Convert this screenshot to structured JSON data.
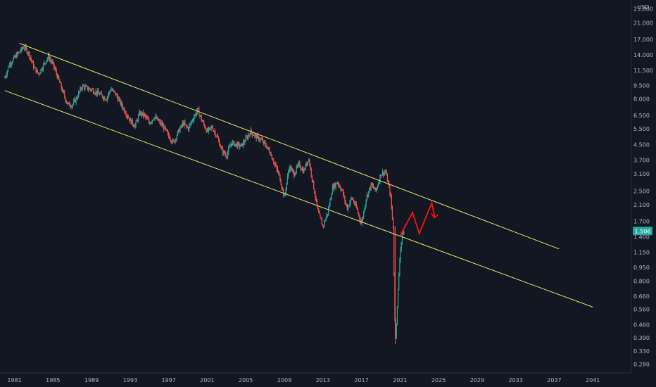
{
  "chart_data": {
    "type": "line",
    "title": "",
    "xlabel": "",
    "ylabel": "USD",
    "y_scale": "log",
    "ylim": [
      0.25,
      28.0
    ],
    "xlim": [
      1979.5,
      2045.0
    ],
    "grid": false,
    "x_ticks": [
      1981,
      1985,
      1989,
      1993,
      1997,
      2001,
      2005,
      2009,
      2013,
      2017,
      2021,
      2025,
      2029,
      2033,
      2037,
      2041
    ],
    "y_ticks": [
      "25.000",
      "21.000",
      "17.000",
      "14.000",
      "11.500",
      "9.500",
      "8.000",
      "6.500",
      "5.500",
      "4.500",
      "3.700",
      "3.100",
      "2.500",
      "2.100",
      "1.700",
      "1.400",
      "1.150",
      "0.950",
      "0.800",
      "0.660",
      "0.560",
      "0.460",
      "0.390",
      "0.330",
      "0.280"
    ],
    "last_price": {
      "label": "1.506",
      "value": 1.506,
      "color": "#26a69a"
    },
    "series": [
      {
        "role": "price",
        "color_up": "#26a69a",
        "color_down": "#ef5350",
        "points": [
          [
            1980.0,
            10.5
          ],
          [
            1980.5,
            12.5
          ],
          [
            1981.0,
            13.5
          ],
          [
            1981.5,
            14.5
          ],
          [
            1982.0,
            15.5
          ],
          [
            1982.5,
            14.2
          ],
          [
            1983.0,
            12.0
          ],
          [
            1983.5,
            11.0
          ],
          [
            1984.0,
            12.3
          ],
          [
            1984.5,
            13.7
          ],
          [
            1985.0,
            12.4
          ],
          [
            1985.5,
            10.5
          ],
          [
            1986.0,
            8.8
          ],
          [
            1986.5,
            7.5
          ],
          [
            1987.0,
            7.4
          ],
          [
            1987.5,
            8.2
          ],
          [
            1988.0,
            9.4
          ],
          [
            1988.5,
            9.2
          ],
          [
            1989.0,
            9.0
          ],
          [
            1989.5,
            8.7
          ],
          [
            1990.0,
            8.4
          ],
          [
            1990.5,
            8.0
          ],
          [
            1991.0,
            9.1
          ],
          [
            1991.5,
            8.5
          ],
          [
            1992.0,
            7.6
          ],
          [
            1992.5,
            6.8
          ],
          [
            1993.0,
            6.1
          ],
          [
            1993.5,
            5.7
          ],
          [
            1994.0,
            6.7
          ],
          [
            1994.5,
            6.5
          ],
          [
            1995.0,
            5.9
          ],
          [
            1995.5,
            6.4
          ],
          [
            1996.0,
            6.0
          ],
          [
            1996.5,
            5.6
          ],
          [
            1997.0,
            5.0
          ],
          [
            1997.5,
            4.6
          ],
          [
            1998.0,
            5.3
          ],
          [
            1998.5,
            5.9
          ],
          [
            1999.0,
            5.5
          ],
          [
            1999.5,
            6.2
          ],
          [
            2000.0,
            7.0
          ],
          [
            2000.5,
            6.0
          ],
          [
            2001.0,
            5.3
          ],
          [
            2001.5,
            5.6
          ],
          [
            2002.0,
            5.0
          ],
          [
            2002.5,
            4.2
          ],
          [
            2003.0,
            3.9
          ],
          [
            2003.5,
            4.6
          ],
          [
            2004.0,
            4.5
          ],
          [
            2004.5,
            4.4
          ],
          [
            2005.0,
            4.8
          ],
          [
            2005.5,
            5.3
          ],
          [
            2006.0,
            5.0
          ],
          [
            2006.5,
            4.8
          ],
          [
            2007.0,
            4.5
          ],
          [
            2007.5,
            4.1
          ],
          [
            2008.0,
            3.5
          ],
          [
            2008.5,
            3.0
          ],
          [
            2009.0,
            2.3
          ],
          [
            2009.5,
            3.4
          ],
          [
            2010.0,
            3.1
          ],
          [
            2010.5,
            3.5
          ],
          [
            2011.0,
            3.2
          ],
          [
            2011.5,
            3.8
          ],
          [
            2012.0,
            2.7
          ],
          [
            2012.5,
            1.9
          ],
          [
            2013.0,
            1.6
          ],
          [
            2013.5,
            1.9
          ],
          [
            2014.0,
            2.6
          ],
          [
            2014.5,
            2.8
          ],
          [
            2015.0,
            2.5
          ],
          [
            2015.5,
            2.0
          ],
          [
            2016.0,
            2.3
          ],
          [
            2016.5,
            2.0
          ],
          [
            2017.0,
            1.65
          ],
          [
            2017.5,
            2.3
          ],
          [
            2018.0,
            2.7
          ],
          [
            2018.5,
            2.5
          ],
          [
            2019.0,
            3.1
          ],
          [
            2019.5,
            3.2
          ],
          [
            2020.0,
            2.4
          ],
          [
            2020.3,
            1.55
          ],
          [
            2020.45,
            0.5
          ],
          [
            2020.55,
            0.4
          ],
          [
            2020.7,
            0.55
          ],
          [
            2020.85,
            0.8
          ],
          [
            2021.0,
            1.15
          ],
          [
            2021.25,
            1.45
          ],
          [
            2021.45,
            1.506
          ]
        ]
      },
      {
        "role": "channel-upper",
        "color": "#e8e46a",
        "points": [
          [
            1981.5,
            16.2
          ],
          [
            2037.5,
            1.2
          ]
        ]
      },
      {
        "role": "channel-lower",
        "color": "#e8e46a",
        "points": [
          [
            1980.0,
            8.9
          ],
          [
            2041.0,
            0.575
          ]
        ]
      },
      {
        "role": "projection",
        "color": "#ff1111",
        "points": [
          [
            2021.0,
            1.42
          ],
          [
            2022.3,
            1.9
          ],
          [
            2023.0,
            1.46
          ],
          [
            2024.3,
            2.15
          ],
          [
            2024.6,
            1.78
          ]
        ]
      }
    ]
  }
}
